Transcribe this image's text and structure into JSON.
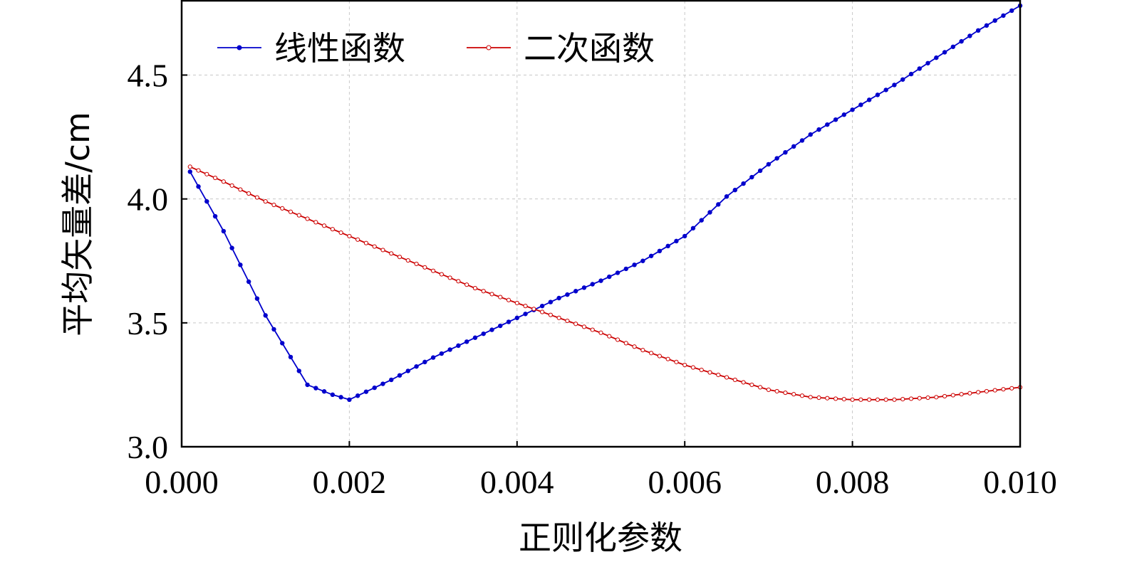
{
  "chart_data": {
    "type": "line",
    "title": "",
    "xlabel": "正则化参数",
    "ylabel": "平均矢量差/cm",
    "xlim": [
      0.0,
      0.01
    ],
    "ylim": [
      3.0,
      4.8
    ],
    "xticks": [
      0.0,
      0.002,
      0.004,
      0.006,
      0.008,
      0.01
    ],
    "xtick_labels": [
      "0.000",
      "0.002",
      "0.004",
      "0.006",
      "0.008",
      "0.010"
    ],
    "yticks": [
      3.0,
      3.5,
      4.0,
      4.5
    ],
    "ytick_labels": [
      "3.0",
      "3.5",
      "4.0",
      "4.5"
    ],
    "grid": true,
    "legend_position": "top-left",
    "series": [
      {
        "name": "线性函数",
        "color": "#0000cc",
        "marker": "filled-circle",
        "x": [
          0.0001,
          0.0005,
          0.001,
          0.0015,
          0.0018,
          0.002,
          0.0025,
          0.003,
          0.0035,
          0.004,
          0.0045,
          0.005,
          0.0055,
          0.006,
          0.0065,
          0.007,
          0.0075,
          0.008,
          0.0085,
          0.009,
          0.0095,
          0.01
        ],
        "y": [
          4.11,
          3.87,
          3.53,
          3.25,
          3.21,
          3.19,
          3.27,
          3.36,
          3.44,
          3.52,
          3.6,
          3.67,
          3.75,
          3.85,
          4.01,
          4.14,
          4.26,
          4.36,
          4.46,
          4.57,
          4.68,
          4.78
        ]
      },
      {
        "name": "二次函数",
        "color": "#cc0000",
        "marker": "open-circle",
        "x": [
          0.0001,
          0.0005,
          0.001,
          0.0015,
          0.002,
          0.0025,
          0.003,
          0.0035,
          0.004,
          0.0045,
          0.005,
          0.0055,
          0.006,
          0.0065,
          0.007,
          0.0075,
          0.008,
          0.0085,
          0.009,
          0.0095,
          0.01
        ],
        "y": [
          4.13,
          4.07,
          3.99,
          3.92,
          3.85,
          3.78,
          3.71,
          3.64,
          3.58,
          3.52,
          3.46,
          3.39,
          3.33,
          3.28,
          3.23,
          3.2,
          3.19,
          3.19,
          3.2,
          3.22,
          3.24
        ]
      }
    ]
  }
}
